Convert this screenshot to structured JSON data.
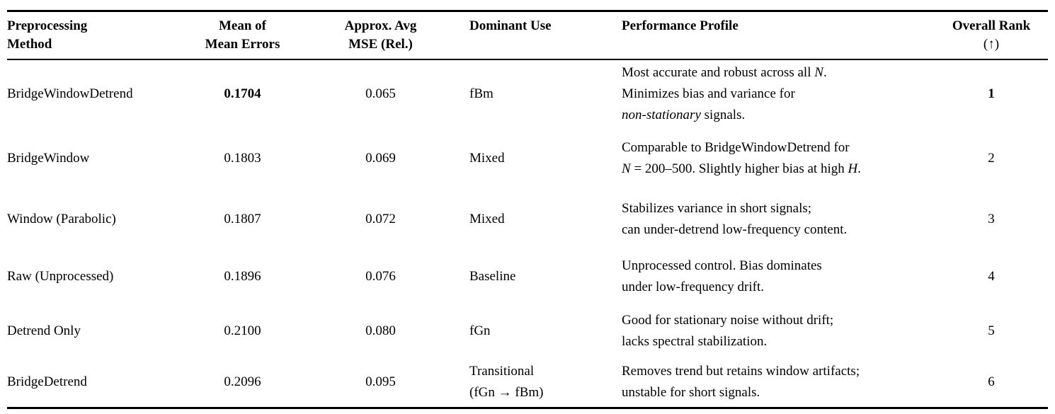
{
  "table": {
    "headers": {
      "method": {
        "line1": "Preprocessing",
        "line2": "Method"
      },
      "mean_errors": {
        "line1": "Mean of",
        "line2": "Mean Errors"
      },
      "mse": {
        "line1": "Approx. Avg",
        "line2": "MSE (Rel.)"
      },
      "dominant_use": {
        "line1": "Dominant Use"
      },
      "profile": {
        "line1": "Performance Profile"
      },
      "rank": {
        "line1": "Overall Rank",
        "line2": "(↑)"
      }
    },
    "rows": [
      {
        "method": "BridgeWindowDetrend",
        "mean_error": "0.1704",
        "mse": "0.065",
        "use": [
          "fBm"
        ],
        "profile": [
          [
            "Most accurate and robust across all ",
            "N",
            "."
          ],
          [
            "Minimizes bias and variance for"
          ],
          [
            "non-stationary",
            " signals."
          ]
        ],
        "rank": "1"
      },
      {
        "method": "BridgeWindow",
        "mean_error": "0.1803",
        "mse": "0.069",
        "use": [
          "Mixed"
        ],
        "profile": [
          [
            "Comparable to BridgeWindowDetrend for"
          ],
          [
            "N",
            " = 200–500. Slightly higher bias at high ",
            "H",
            "."
          ]
        ],
        "rank": "2"
      },
      {
        "method": "Window (Parabolic)",
        "mean_error": "0.1807",
        "mse": "0.072",
        "use": [
          "Mixed"
        ],
        "profile": [
          [
            "Stabilizes variance in short signals;"
          ],
          [
            "can under-detrend low-frequency content."
          ]
        ],
        "rank": "3"
      },
      {
        "method": "Raw (Unprocessed)",
        "mean_error": "0.1896",
        "mse": "0.076",
        "use": [
          "Baseline"
        ],
        "profile": [
          [
            "Unprocessed control. Bias dominates"
          ],
          [
            "under low-frequency drift."
          ]
        ],
        "rank": "4"
      },
      {
        "method": "Detrend Only",
        "mean_error": "0.2100",
        "mse": "0.080",
        "use": [
          "fGn"
        ],
        "profile": [
          [
            "Good for stationary noise without drift;"
          ],
          [
            "lacks spectral stabilization."
          ]
        ],
        "rank": "5"
      },
      {
        "method": "BridgeDetrend",
        "mean_error": "0.2096",
        "mse": "0.095",
        "use": [
          "Transitional",
          "(fGn → fBm)"
        ],
        "profile": [
          [
            "Removes trend but retains window artifacts;"
          ],
          [
            "unstable for short signals."
          ]
        ],
        "rank": "6"
      }
    ]
  }
}
